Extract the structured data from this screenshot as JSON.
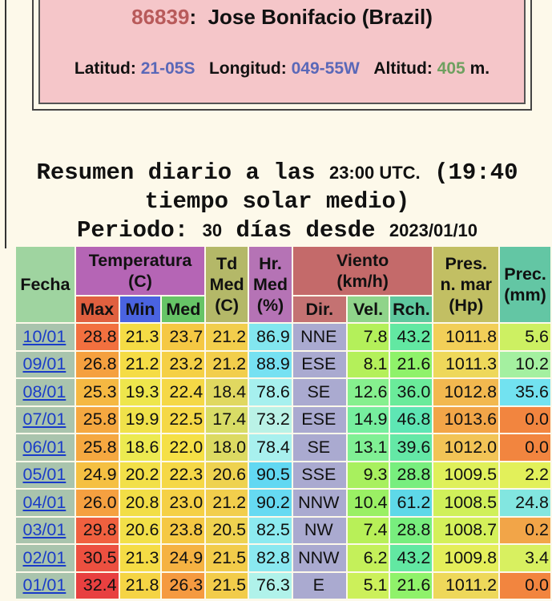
{
  "header": {
    "station_id": "86839",
    "separator": ":",
    "station_name": "Jose Bonifacio (Brazil)",
    "latitude_label": "Latitud:",
    "latitude": "21-05S",
    "longitude_label": "Longitud:",
    "longitude": "049-55W",
    "altitude_label": "Altitud:",
    "altitude": "405",
    "altitude_unit": "m."
  },
  "summary": {
    "title_prefix": "Resumen diario a las",
    "time": "23:00 UTC.",
    "solar": "(19:40 tiempo solar medio)",
    "period_label": "Periodo:",
    "days": "30",
    "days_label": "días desde",
    "start_date": "2023/01/10"
  },
  "table": {
    "headers": {
      "date": [
        "Fecha"
      ],
      "temperature": [
        "Temperatura",
        "(C)"
      ],
      "dew_point": [
        "Td",
        "Med",
        "(C)"
      ],
      "humidity": [
        "Hr.",
        "Med",
        "(%)"
      ],
      "wind": [
        "Viento",
        "(km/h)"
      ],
      "pressure": [
        "Pres.",
        "n. mar",
        "(Hp)"
      ],
      "precipitation": [
        "Prec.",
        "(mm)"
      ],
      "sub": [
        "Max",
        "Min",
        "Med",
        "Dir.",
        "Vel.",
        "Rch."
      ]
    },
    "header_colors": {
      "date": "#9fd4a0",
      "temperature": "#b565b5",
      "dew_point": "#b4b868",
      "humidity": "#b573b5",
      "wind": "#c46a6a",
      "pressure": "#c2bf63",
      "precipitation": "#63c6a4",
      "sub": [
        "#e0603f",
        "#4a63e0",
        "#66c466",
        "#c47272",
        "#8fd48a",
        "#5ec89e"
      ]
    },
    "date_color": "#a9c4ad",
    "rows": [
      {
        "date": "10/01",
        "values": [
          "28.8",
          "21.3",
          "23.7",
          "21.2",
          "86.9",
          "NNE",
          "7.8",
          "43.2",
          "1011.8",
          "5.6"
        ],
        "colors": [
          "#f2703f",
          "#f5dc45",
          "#f5c843",
          "#f2ce4c",
          "#82e6ef",
          "#aaaad0",
          "#b4f05a",
          "#62e8a2",
          "#f2cf58",
          "#cdf062"
        ]
      },
      {
        "date": "09/01",
        "values": [
          "26.8",
          "21.2",
          "23.2",
          "21.2",
          "88.9",
          "ESE",
          "8.1",
          "21.6",
          "1011.3",
          "10.2"
        ],
        "colors": [
          "#f5a03f",
          "#f5dc45",
          "#f5d045",
          "#f2ce4c",
          "#76e1f2",
          "#aaaad0",
          "#b4f05a",
          "#8ff26a",
          "#eed85a",
          "#a4f0a0"
        ]
      },
      {
        "date": "08/01",
        "values": [
          "25.3",
          "19.3",
          "22.4",
          "18.4",
          "78.6",
          "SE",
          "12.6",
          "36.0",
          "1012.8",
          "35.6"
        ],
        "colors": [
          "#f5b842",
          "#eee64c",
          "#f5d846",
          "#e0d860",
          "#a6f0ee",
          "#aaaad0",
          "#86f08e",
          "#6aeb9a",
          "#f2b84f",
          "#72e2f0"
        ]
      },
      {
        "date": "07/01",
        "values": [
          "25.8",
          "19.9",
          "22.5",
          "17.4",
          "73.2",
          "ESE",
          "14.9",
          "46.8",
          "1013.6",
          "0.0"
        ],
        "colors": [
          "#f5a840",
          "#f0e24a",
          "#f5d846",
          "#d8dc66",
          "#baf2e6",
          "#aaaad0",
          "#76ee9e",
          "#5ee6b4",
          "#f2a548",
          "#f2853f"
        ]
      },
      {
        "date": "06/01",
        "values": [
          "25.8",
          "18.6",
          "22.0",
          "18.0",
          "78.4",
          "SE",
          "13.1",
          "39.6",
          "1012.0",
          "0.0"
        ],
        "colors": [
          "#f5a840",
          "#ecea50",
          "#f5e046",
          "#dcda62",
          "#a8f0ee",
          "#aaaad0",
          "#80f094",
          "#64e8a6",
          "#f2c456",
          "#f2853f"
        ]
      },
      {
        "date": "05/01",
        "values": [
          "24.9",
          "20.2",
          "22.3",
          "20.6",
          "90.5",
          "SSE",
          "9.3",
          "28.8",
          "1009.5",
          "2.2"
        ],
        "colors": [
          "#f5c042",
          "#f2e048",
          "#f5d846",
          "#eed250",
          "#62d8f2",
          "#aaaad0",
          "#a8f05e",
          "#78ee7e",
          "#dff05a",
          "#e2f05a"
        ]
      },
      {
        "date": "04/01",
        "values": [
          "26.0",
          "20.8",
          "23.0",
          "21.2",
          "90.2",
          "NNW",
          "10.4",
          "61.2",
          "1008.5",
          "24.8"
        ],
        "colors": [
          "#f5a040",
          "#f2de46",
          "#f5d045",
          "#f2ce4c",
          "#66daf2",
          "#aaaad0",
          "#9af064",
          "#5ed8e8",
          "#d0f05a",
          "#82e6e0"
        ]
      },
      {
        "date": "03/01",
        "values": [
          "29.8",
          "20.6",
          "23.8",
          "20.5",
          "82.5",
          "NW",
          "7.4",
          "28.8",
          "1008.7",
          "0.2"
        ],
        "colors": [
          "#f0603f",
          "#f2e048",
          "#f5c843",
          "#eed250",
          "#8ceaf0",
          "#aaaad0",
          "#b8f058",
          "#78ee7e",
          "#d4f05a",
          "#f2a548"
        ]
      },
      {
        "date": "02/01",
        "values": [
          "30.5",
          "21.3",
          "24.9",
          "21.5",
          "82.8",
          "NNW",
          "6.2",
          "43.2",
          "1009.8",
          "3.4"
        ],
        "colors": [
          "#ec5040",
          "#f5dc45",
          "#f5b242",
          "#f2cc4a",
          "#8ae8f0",
          "#aaaad0",
          "#c4f05a",
          "#62e8a2",
          "#e4ee5a",
          "#d8f060"
        ]
      },
      {
        "date": "01/01",
        "values": [
          "32.4",
          "21.8",
          "26.3",
          "21.5",
          "76.3",
          "E",
          "5.1",
          "21.6",
          "1011.2",
          "0.0"
        ],
        "colors": [
          "#e84040",
          "#f5d444",
          "#f59a40",
          "#f2cc4a",
          "#b0f2ea",
          "#aaaad0",
          "#ccf05a",
          "#8ff26a",
          "#eed85a",
          "#f2853f"
        ]
      }
    ]
  }
}
